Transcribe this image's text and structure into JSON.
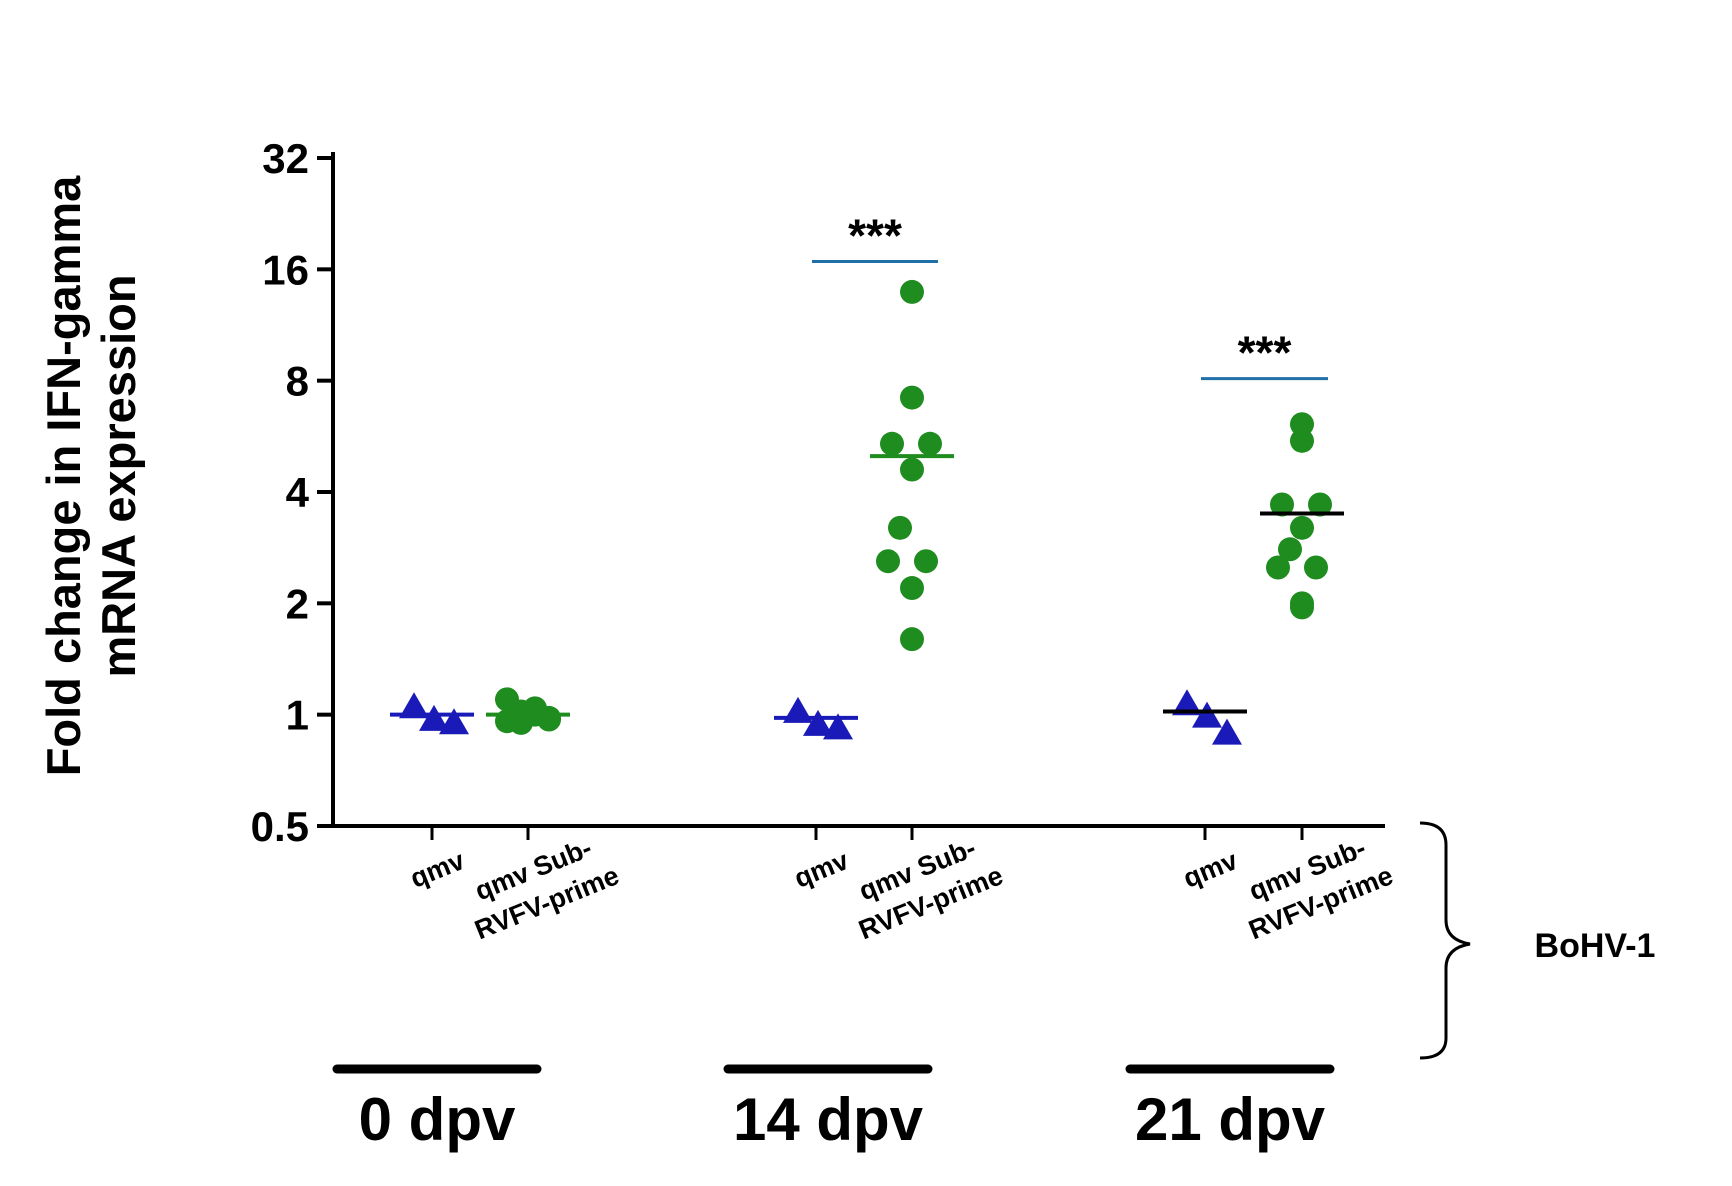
{
  "chart_data": {
    "type": "scatter",
    "y_axis": {
      "label_line1": "Fold change in IFN-gamma",
      "label_line2": "mRNA expression",
      "scale": "log2",
      "ylim": [
        0.5,
        32
      ],
      "ticks": [
        "0.5",
        "1",
        "2",
        "4",
        "8",
        "16",
        "32"
      ]
    },
    "groups": [
      {
        "label": "0 dpv",
        "series": [
          {
            "label_lines": [
              "qmv"
            ],
            "marker": "triangle",
            "color": "#1a1ab8",
            "mean_color": "#1a1ab8",
            "points": [
              1.06,
              0.98,
              0.96
            ],
            "mean": 1.0
          },
          {
            "label_lines": [
              "qmv Sub-",
              "RVFV-prime"
            ],
            "marker": "circle",
            "color": "#1e8c1e",
            "mean_color": "#1e8c1e",
            "points": [
              1.1,
              1.02,
              1.0,
              0.98,
              0.96,
              0.95,
              1.04,
              0.97
            ],
            "mean": 1.0
          }
        ]
      },
      {
        "label": "14 dpv",
        "series": [
          {
            "label_lines": [
              "qmv"
            ],
            "marker": "triangle",
            "color": "#1a1ab8",
            "mean_color": "#1a1ab8",
            "points": [
              1.03,
              0.95,
              0.93
            ],
            "mean": 0.98
          },
          {
            "label_lines": [
              "qmv Sub-",
              "RVFV-prime"
            ],
            "marker": "circle",
            "color": "#1e8c1e",
            "mean_color": "#1e8c1e",
            "points": [
              13.9,
              7.2,
              5.4,
              5.4,
              4.6,
              3.2,
              2.6,
              2.6,
              2.2,
              1.6
            ],
            "mean": 5.0
          }
        ]
      },
      {
        "label": "21 dpv",
        "series": [
          {
            "label_lines": [
              "qmv"
            ],
            "marker": "triangle",
            "color": "#1a1ab8",
            "mean_color": "#000000",
            "points": [
              1.08,
              1.0,
              0.9
            ],
            "mean": 1.02
          },
          {
            "label_lines": [
              "qmv Sub-",
              "RVFV-prime"
            ],
            "marker": "circle",
            "color": "#1e8c1e",
            "mean_color": "#000000",
            "points": [
              6.1,
              5.5,
              3.7,
              3.7,
              3.2,
              2.8,
              2.5,
              2.5,
              2.0,
              1.95
            ],
            "mean": 3.5
          }
        ]
      }
    ],
    "significance": [
      {
        "group": "14 dpv",
        "label": "***",
        "y": 16.8
      },
      {
        "group": "21 dpv",
        "label": "***",
        "y": 8.1
      }
    ],
    "bracket_label": "BoHV-1"
  }
}
